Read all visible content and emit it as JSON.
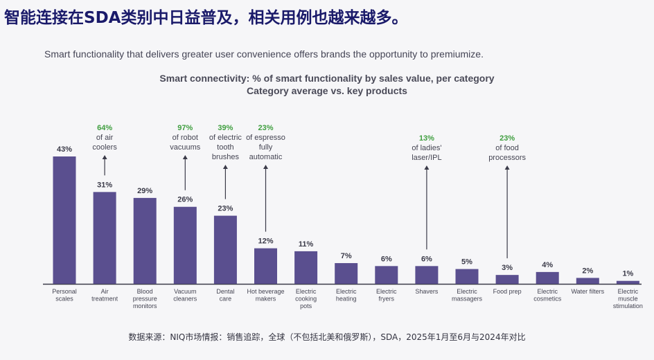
{
  "page": {
    "title": "智能连接在SDA类别中日益普及，相关用例也越来越多。",
    "subtitle": "Smart functionality that delivers greater user convenience offers brands the opportunity to premiumize.",
    "source": "数据来源：NIQ市场情报：销售追踪，全球（不包括北美和俄罗斯），SDA，2025年1月至6月与2024年对比"
  },
  "chart_data": {
    "type": "bar",
    "title": "Smart connectivity: % of smart functionality by sales value, per category",
    "subtitle": "Category average vs. key products",
    "categories": [
      [
        "Personal",
        "scales"
      ],
      [
        "Air",
        "treatment"
      ],
      [
        "Blood",
        "pressure",
        "monitors"
      ],
      [
        "Vacuum",
        "cleaners"
      ],
      [
        "Dental",
        "care"
      ],
      [
        "Hot beverage",
        "makers"
      ],
      [
        "Electric",
        "cooking",
        "pots"
      ],
      [
        "Electric",
        "heating"
      ],
      [
        "Electric",
        "fryers"
      ],
      [
        "Shavers"
      ],
      [
        "Electric",
        "massagers"
      ],
      [
        "Food prep"
      ],
      [
        "Electric",
        "cosmetics"
      ],
      [
        "Water filters"
      ],
      [
        "Electric",
        "muscle",
        "stimulation"
      ]
    ],
    "values": [
      43,
      31,
      29,
      26,
      23,
      12,
      11,
      7,
      6,
      6,
      5,
      3,
      4,
      2,
      1
    ],
    "value_labels": [
      "43%",
      "31%",
      "29%",
      "26%",
      "23%",
      "12%",
      "11%",
      "7%",
      "6%",
      "6%",
      "5%",
      "3%",
      "4%",
      "2%",
      "1%"
    ],
    "ylim": [
      0,
      45
    ],
    "bar_color": "#5a4f8f",
    "highlight_color": "#3f9e3f",
    "annotations": [
      {
        "category_index": 1,
        "value": "64%",
        "lines": [
          "of air",
          "coolers"
        ]
      },
      {
        "category_index": 3,
        "value": "97%",
        "lines": [
          "of robot",
          "vacuums"
        ]
      },
      {
        "category_index": 4,
        "value": "39%",
        "lines": [
          "of electric",
          "tooth",
          "brushes"
        ]
      },
      {
        "category_index": 5,
        "value": "23%",
        "lines": [
          "of espresso",
          "fully",
          "automatic"
        ]
      },
      {
        "category_index": 9,
        "value": "13%",
        "lines": [
          "of ladies'",
          "laser/IPL"
        ]
      },
      {
        "category_index": 11,
        "value": "23%",
        "lines": [
          "of food",
          "processors"
        ]
      }
    ]
  }
}
